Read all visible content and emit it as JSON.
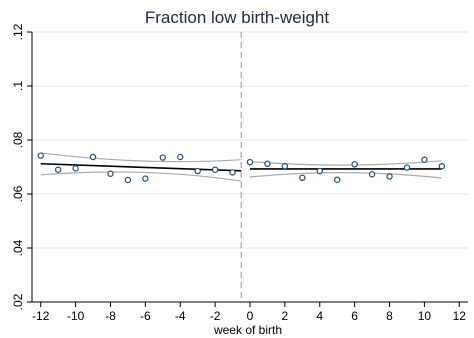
{
  "chart_data": {
    "type": "scatter",
    "title": "Fraction low birth-weight",
    "xlabel": "week of birth",
    "ylabel": "",
    "xlim": [
      -12.5,
      12.5
    ],
    "ylim": [
      0.02,
      0.12
    ],
    "xticks": [
      -12,
      -10,
      -8,
      -6,
      -4,
      -2,
      0,
      2,
      4,
      6,
      8,
      10,
      12
    ],
    "xtick_labels": [
      "-12",
      "-10",
      "-8",
      "-6",
      "-4",
      "-2",
      "0",
      "2",
      "4",
      "6",
      "8",
      "10",
      "12"
    ],
    "yticks": [
      0.02,
      0.04,
      0.06,
      0.08,
      0.1,
      0.12
    ],
    "ytick_labels": [
      ".02",
      ".04",
      ".06",
      ".08",
      ".1",
      ".12"
    ],
    "cutoff_x": -0.5,
    "grid": true,
    "colors": {
      "points": "#1f4e79",
      "fit": "#000000",
      "ci": "#aaaaaa",
      "cutoff": "#aaaaaa",
      "grid": "#e6e6e6"
    },
    "points": {
      "x": [
        -12,
        -11,
        -10,
        -9,
        -8,
        -7,
        -6,
        -5,
        -4,
        -3,
        -2,
        -1,
        0,
        1,
        2,
        3,
        4,
        5,
        6,
        7,
        8,
        9,
        10,
        11
      ],
      "y": [
        0.0742,
        0.069,
        0.0695,
        0.0737,
        0.0675,
        0.0652,
        0.0657,
        0.0735,
        0.0737,
        0.0685,
        0.069,
        0.068,
        0.0718,
        0.0712,
        0.0703,
        0.066,
        0.0685,
        0.0653,
        0.071,
        0.0673,
        0.0665,
        0.0698,
        0.0727,
        0.0703
      ]
    },
    "fits": [
      {
        "x": [
          -12,
          -0.5
        ],
        "y": [
          0.0712,
          0.0686
        ],
        "ci_upper": [
          0.0752,
          0.0727
        ],
        "ci_lower": [
          0.0671,
          0.0648
        ],
        "ci_mid_x": -6,
        "ci_mid_upper": [
          0.0722
        ],
        "ci_mid_lower": [
          0.068
        ]
      },
      {
        "x": [
          0,
          11
        ],
        "y": [
          0.0693,
          0.0693
        ],
        "ci_upper": [
          0.072,
          0.0723
        ],
        "ci_lower": [
          0.0663,
          0.0659
        ],
        "ci_mid_x": 5.5,
        "ci_mid_upper": [
          0.0707
        ],
        "ci_mid_lower": [
          0.0679
        ]
      }
    ]
  }
}
